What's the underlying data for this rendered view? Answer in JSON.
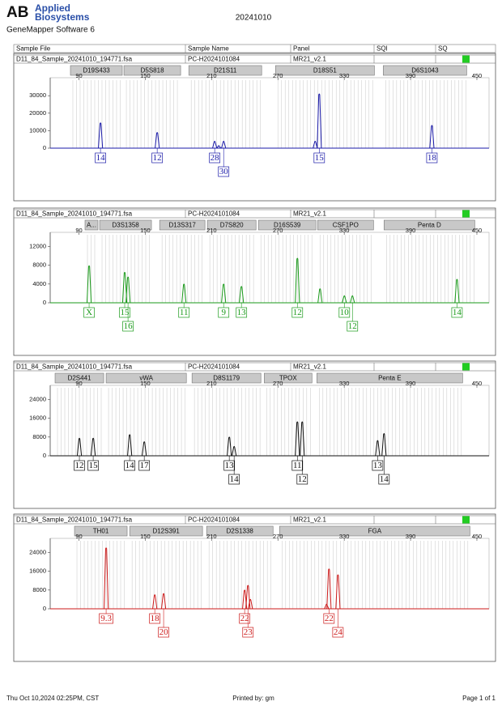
{
  "header": {
    "logo": "AB",
    "brand_1": "Applied",
    "brand_2": "Biosystems",
    "software": "GeneMapper Software 6",
    "title": "20241010"
  },
  "columns": [
    "Sample File",
    "Sample Name",
    "Panel",
    "SQI",
    "SQ"
  ],
  "footer": {
    "date": "Thu Oct 10,2024 02:25PM, CST",
    "printed_by": "Printed by: gm",
    "page": "Page 1 of 1"
  },
  "chart_data": [
    {
      "type": "electropherogram",
      "sample_file": "D11_84_Sample_20241010_194771.fsa",
      "sample_name": "PC-H2024101084",
      "panel": "MR21_v2.1",
      "sq_color": "#22cc22",
      "color": "#1a1aa8",
      "xlim": [
        64,
        461
      ],
      "xticks": [
        90,
        150,
        210,
        270,
        330,
        390,
        450
      ],
      "ylim": [
        0,
        38900
      ],
      "yticks": [
        0,
        10000,
        20000,
        30000
      ],
      "markers": [
        {
          "name": "D19S433",
          "start": 82.3,
          "end": 129.2
        },
        {
          "name": "D5S818",
          "start": 130.7,
          "end": 182
        },
        {
          "name": "D21S11",
          "start": 189.4,
          "end": 255.3
        },
        {
          "name": "D18S51",
          "start": 267.8,
          "end": 357.3
        },
        {
          "name": "D6S1043",
          "start": 365.3,
          "end": 440.8
        }
      ],
      "x": [
        109.5,
        160.8,
        212.8,
        216.5,
        220.9,
        303.7,
        307.4,
        409.3
      ],
      "values": [
        14500,
        9000,
        4000,
        1500,
        4000,
        4000,
        31000,
        13000
      ],
      "alleles": [
        {
          "label": "14",
          "x": 109.5
        },
        {
          "label": "12",
          "x": 160.8
        },
        {
          "label": "28",
          "x": 212.8
        },
        {
          "label": "30",
          "x": 220.9
        },
        {
          "label": "15",
          "x": 307.4
        },
        {
          "label": "18",
          "x": 409.3
        }
      ]
    },
    {
      "type": "electropherogram",
      "sample_file": "D11_84_Sample_20241010_194771.fsa",
      "sample_name": "PC-H2024101084",
      "panel": "MR21_v2.1",
      "sq_color": "#22cc22",
      "color": "#1a9a1a",
      "xlim": [
        64,
        461
      ],
      "xticks": [
        90,
        150,
        210,
        270,
        330,
        390,
        450
      ],
      "ylim": [
        0,
        14500
      ],
      "yticks": [
        0,
        4000,
        8000,
        12000
      ],
      "markers": [
        {
          "name": "A...",
          "start": 95.5,
          "end": 107.2
        },
        {
          "name": "D3S1358",
          "start": 108.7,
          "end": 155.6
        },
        {
          "name": "D13S317",
          "start": 163,
          "end": 204
        },
        {
          "name": "D7S820",
          "start": 206.2,
          "end": 250.2
        },
        {
          "name": "D16S539",
          "start": 252.4,
          "end": 304.4
        },
        {
          "name": "CSF1PO",
          "start": 305.9,
          "end": 356.5
        },
        {
          "name": "Penta D",
          "start": 366,
          "end": 448.1
        }
      ],
      "x": [
        99.2,
        131.4,
        134.4,
        185,
        220.9,
        237,
        287.6,
        308.1,
        330.1,
        337.4,
        432
      ],
      "values": [
        7900,
        6500,
        5500,
        4000,
        4000,
        3500,
        9500,
        3000,
        1500,
        1500,
        5000
      ],
      "alleles": [
        {
          "label": "X",
          "x": 99.2
        },
        {
          "label": "15",
          "x": 131.4
        },
        {
          "label": "16",
          "x": 134.4
        },
        {
          "label": "11",
          "x": 185
        },
        {
          "label": "9",
          "x": 220.9
        },
        {
          "label": "13",
          "x": 237
        },
        {
          "label": "12",
          "x": 287.6
        },
        {
          "label": "10",
          "x": 330.1
        },
        {
          "label": "12",
          "x": 337.4
        },
        {
          "label": "14",
          "x": 432
        }
      ]
    },
    {
      "type": "electropherogram",
      "sample_file": "D11_84_Sample_20241010_194771.fsa",
      "sample_name": "PC-H2024101084",
      "panel": "MR21_v2.1",
      "sq_color": "#22cc22",
      "color": "#111111",
      "xlim": [
        64,
        461
      ],
      "xticks": [
        90,
        150,
        210,
        270,
        330,
        390,
        450
      ],
      "ylim": [
        0,
        29000
      ],
      "yticks": [
        0,
        8000,
        16000,
        24000
      ],
      "markers": [
        {
          "name": "D2S441",
          "start": 68.4,
          "end": 112.4
        },
        {
          "name": "vWA",
          "start": 114.6,
          "end": 187.2
        },
        {
          "name": "D8S1179",
          "start": 192.3,
          "end": 254.6
        },
        {
          "name": "TPOX",
          "start": 257.6,
          "end": 300.8
        },
        {
          "name": "Penta E",
          "start": 305.2,
          "end": 437.1
        }
      ],
      "x": [
        90.4,
        102.9,
        135.9,
        149.1,
        226,
        230.4,
        287.6,
        292,
        360.2,
        366
      ],
      "values": [
        7500,
        7500,
        9000,
        6000,
        8000,
        4000,
        14500,
        14500,
        6500,
        9500
      ],
      "alleles": [
        {
          "label": "12",
          "x": 90.4
        },
        {
          "label": "15",
          "x": 102.9
        },
        {
          "label": "14",
          "x": 135.9
        },
        {
          "label": "17",
          "x": 149.1
        },
        {
          "label": "13",
          "x": 226
        },
        {
          "label": "14",
          "x": 230.4
        },
        {
          "label": "11",
          "x": 287.6
        },
        {
          "label": "12",
          "x": 292
        },
        {
          "label": "13",
          "x": 360.2
        },
        {
          "label": "14",
          "x": 366
        }
      ]
    },
    {
      "type": "electropherogram",
      "sample_file": "D11_84_Sample_20241010_194771.fsa",
      "sample_name": "PC-H2024101084",
      "panel": "MR21_v2.1",
      "sq_color": "#22cc22",
      "color": "#cc1a1a",
      "xlim": [
        64,
        461
      ],
      "xticks": [
        90,
        150,
        210,
        270,
        330,
        390,
        450
      ],
      "ylim": [
        0,
        29000
      ],
      "yticks": [
        0,
        8000,
        16000,
        24000
      ],
      "markers": [
        {
          "name": "TH01",
          "start": 86,
          "end": 133.6
        },
        {
          "name": "D12S391",
          "start": 135.9,
          "end": 201.8
        },
        {
          "name": "D2S1338",
          "start": 205.5,
          "end": 265.6
        },
        {
          "name": "FGA",
          "start": 271.5,
          "end": 443.7
        }
      ],
      "x": [
        114.6,
        158.6,
        166.6,
        239.9,
        242.9,
        245.1,
        314,
        316.2,
        324.3
      ],
      "values": [
        26000,
        6000,
        6500,
        8000,
        10000,
        4000,
        2000,
        17000,
        14500
      ],
      "alleles": [
        {
          "label": "9.3",
          "x": 114.6
        },
        {
          "label": "18",
          "x": 158.6
        },
        {
          "label": "20",
          "x": 166.6
        },
        {
          "label": "22",
          "x": 239.9
        },
        {
          "label": "23",
          "x": 242.9
        },
        {
          "label": "22",
          "x": 316.2
        },
        {
          "label": "24",
          "x": 324.3
        }
      ]
    }
  ]
}
